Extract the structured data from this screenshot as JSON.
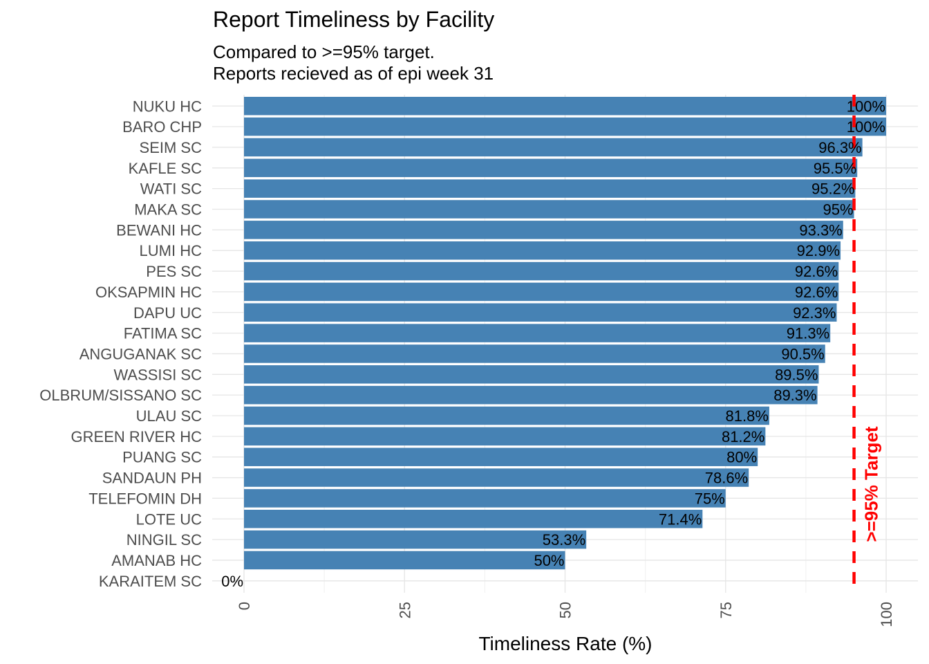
{
  "chart_data": {
    "type": "bar",
    "orientation": "horizontal",
    "title": "Report Timeliness by Facility",
    "subtitle_lines": [
      "Compared to >=95% target.",
      "Reports recieved as of epi week 31"
    ],
    "xlabel": "Timeliness Rate (%)",
    "ylabel": "",
    "xlim": [
      0,
      100
    ],
    "xticks": [
      0,
      25,
      50,
      75,
      100
    ],
    "grid": true,
    "bar_color": "#4682b4",
    "categories": [
      "NUKU HC",
      "BARO CHP",
      "SEIM SC",
      "KAFLE SC",
      "WATI SC",
      "MAKA SC",
      "BEWANI HC",
      "LUMI HC",
      "PES SC",
      "OKSAPMIN HC",
      "DAPU UC",
      "FATIMA SC",
      "ANGUGANAK SC",
      "WASSISI SC",
      "OLBRUM/SISSANO SC",
      "ULAU SC",
      "GREEN RIVER HC",
      "PUANG SC",
      "SANDAUN PH",
      "TELEFOMIN DH",
      "LOTE UC",
      "NINGIL SC",
      "AMANAB HC",
      "KARAITEM SC"
    ],
    "values": [
      100,
      100,
      96.3,
      95.5,
      95.2,
      95,
      93.3,
      92.9,
      92.6,
      92.6,
      92.3,
      91.3,
      90.5,
      89.5,
      89.3,
      81.8,
      81.2,
      80,
      78.6,
      75,
      71.4,
      53.3,
      50,
      0
    ],
    "labels": [
      "100%",
      "100%",
      "96.3%",
      "95.5%",
      "95.2%",
      "95%",
      "93.3%",
      "92.9%",
      "92.6%",
      "92.6%",
      "92.3%",
      "91.3%",
      "90.5%",
      "89.5%",
      "89.3%",
      "81.8%",
      "81.2%",
      "80%",
      "78.6%",
      "75%",
      "71.4%",
      "53.3%",
      "50%",
      "0%"
    ],
    "target": {
      "value": 95,
      "label": ">=95% Target",
      "color": "#ff0000",
      "style": "dashed"
    }
  }
}
